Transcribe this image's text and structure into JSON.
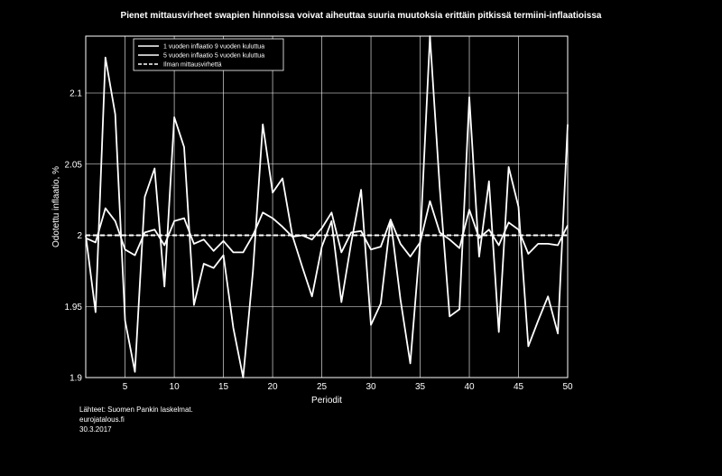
{
  "chart_data": {
    "type": "line",
    "title": "Pienet mittausvirheet swapien hinnoissa voivat aiheuttaa suuria muutoksia erittäin pitkissä termiini-inflaatioissa",
    "xlabel": "Periodit",
    "ylabel": "Odotettu inflaatio, %",
    "xlim": [
      1,
      50
    ],
    "ylim": [
      1.9,
      2.14
    ],
    "xticks": [
      "5",
      "10",
      "15",
      "20",
      "25",
      "30",
      "35",
      "40",
      "45",
      "50"
    ],
    "yticks": [
      "1.9",
      "1.95",
      "2",
      "2.05",
      "2.1"
    ],
    "grid": true,
    "legend_position": "top-left",
    "x": [
      1,
      2,
      3,
      4,
      5,
      6,
      7,
      8,
      9,
      10,
      11,
      12,
      13,
      14,
      15,
      16,
      17,
      18,
      19,
      20,
      21,
      22,
      23,
      24,
      25,
      26,
      27,
      28,
      29,
      30,
      31,
      32,
      33,
      34,
      35,
      36,
      37,
      38,
      39,
      40,
      41,
      42,
      43,
      44,
      45,
      46,
      47,
      48,
      49,
      50
    ],
    "series": [
      {
        "name": "1 vuoden inflaatio 9 vuoden kuluttua",
        "style": "solid",
        "values": [
          2.0,
          1.946,
          2.125,
          2.085,
          1.94,
          1.904,
          2.027,
          2.047,
          1.964,
          2.083,
          2.062,
          1.951,
          1.98,
          1.977,
          1.986,
          1.935,
          1.9,
          1.975,
          2.078,
          2.03,
          2.04,
          2.0,
          1.978,
          1.957,
          1.992,
          2.01,
          1.953,
          1.995,
          2.032,
          1.937,
          1.952,
          2.011,
          1.955,
          1.91,
          1.995,
          2.14,
          2.033,
          1.943,
          1.948,
          2.097,
          1.985,
          2.038,
          1.932,
          2.048,
          2.02,
          1.922,
          1.94,
          1.957,
          1.931,
          2.078
        ]
      },
      {
        "name": "5 vuoden inflaatio 5 vuoden kuluttua",
        "style": "solid",
        "values": [
          1.998,
          1.995,
          2.019,
          2.01,
          1.99,
          1.986,
          2.002,
          2.004,
          1.993,
          2.01,
          2.012,
          1.994,
          1.997,
          1.989,
          1.996,
          1.988,
          1.988,
          2.0,
          2.016,
          2.012,
          2.006,
          1.999,
          2.0,
          1.997,
          2.005,
          2.016,
          1.988,
          2.002,
          2.003,
          1.99,
          1.992,
          2.011,
          1.994,
          1.985,
          1.995,
          2.024,
          2.002,
          1.997,
          1.991,
          2.018,
          1.998,
          2.004,
          1.993,
          2.009,
          2.004,
          1.987,
          1.994,
          1.994,
          1.993,
          2.007
        ]
      },
      {
        "name": "Ilman mittausvirhettä",
        "style": "dashed",
        "values": [
          2.0,
          2.0,
          2.0,
          2.0,
          2.0,
          2.0,
          2.0,
          2.0,
          2.0,
          2.0,
          2.0,
          2.0,
          2.0,
          2.0,
          2.0,
          2.0,
          2.0,
          2.0,
          2.0,
          2.0,
          2.0,
          2.0,
          2.0,
          2.0,
          2.0,
          2.0,
          2.0,
          2.0,
          2.0,
          2.0,
          2.0,
          2.0,
          2.0,
          2.0,
          2.0,
          2.0,
          2.0,
          2.0,
          2.0,
          2.0,
          2.0,
          2.0,
          2.0,
          2.0,
          2.0,
          2.0,
          2.0,
          2.0,
          2.0,
          2.0
        ]
      }
    ]
  },
  "footer": {
    "source": "Lähteet: Suomen Pankin laskelmat.",
    "site": "eurojatalous.fi",
    "date": "30.3.2017"
  },
  "colors": {
    "background": "#000000",
    "line": "#ffffff",
    "grid": "#ffffff"
  }
}
